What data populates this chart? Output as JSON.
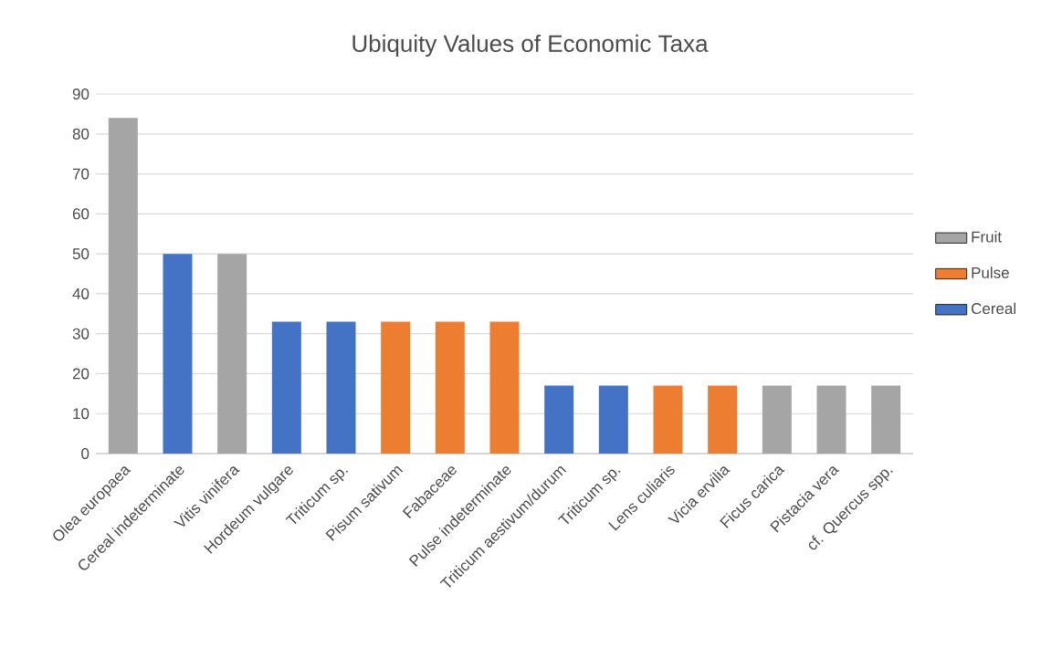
{
  "chart_data": {
    "type": "bar",
    "title": "Ubiquity Values of Economic Taxa",
    "categories": [
      "Olea europaea",
      "Cereal indeterminate",
      "Vitis vinifera",
      "Hordeum vulgare",
      "Triticum sp.",
      "Pisum sativum",
      "Fabaceae",
      "Pulse indeterminate",
      "Triticum aestivum/durum",
      "Triticum sp.",
      "Lens culiaris",
      "Vicia ervilia",
      "Ficus carica",
      "Pistacia vera",
      "cf. Quercus spp."
    ],
    "stacked": true,
    "series": [
      {
        "name": "Fruit",
        "color": "#a5a5a5",
        "values": [
          84,
          null,
          50,
          null,
          null,
          null,
          null,
          null,
          null,
          null,
          null,
          null,
          17,
          17,
          17
        ]
      },
      {
        "name": "Pulse",
        "color": "#ed7d31",
        "values": [
          null,
          null,
          null,
          null,
          null,
          33,
          33,
          33,
          null,
          null,
          17,
          17,
          null,
          null,
          null
        ]
      },
      {
        "name": "Cereal",
        "color": "#4472c4",
        "values": [
          null,
          50,
          null,
          33,
          33,
          null,
          null,
          null,
          17,
          17,
          null,
          null,
          null,
          null,
          null
        ]
      }
    ],
    "ylim": [
      0,
      90
    ],
    "yticks": [
      0,
      10,
      20,
      30,
      40,
      50,
      60,
      70,
      80,
      90
    ],
    "grid": "y",
    "legend": "right"
  }
}
